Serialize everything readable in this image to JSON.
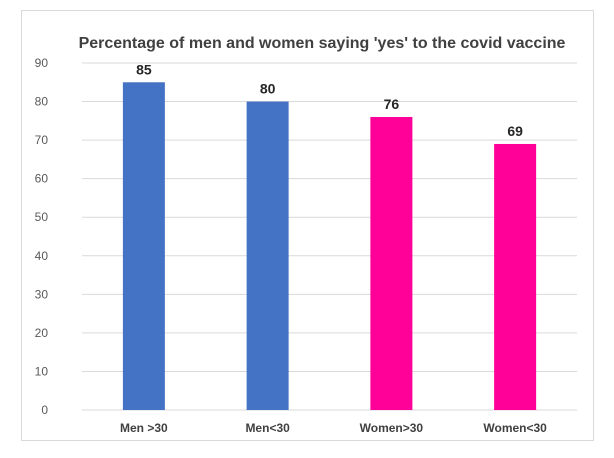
{
  "chart_data": {
    "type": "bar",
    "title": "Percentage of men and women saying 'yes' to the covid vaccine",
    "xlabel": "",
    "ylabel": "",
    "categories": [
      "Men >30",
      "Men<30",
      "Women>30",
      "Women<30"
    ],
    "values": [
      85,
      80,
      76,
      69
    ],
    "data_labels": [
      "85",
      "80",
      "76",
      "69"
    ],
    "bar_colors": [
      "#4472C4",
      "#4472C4",
      "#FF0099",
      "#FF0099"
    ],
    "ylim": [
      0,
      90
    ],
    "yticks": [
      0,
      10,
      20,
      30,
      40,
      50,
      60,
      70,
      80,
      90
    ],
    "grid": true,
    "legend": "none"
  }
}
